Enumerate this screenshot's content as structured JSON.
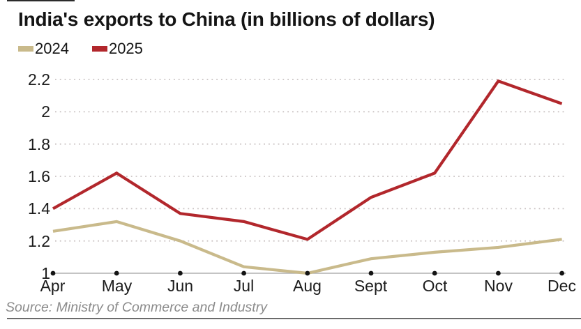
{
  "title": "India's exports to China (in billions of dollars)",
  "source": "Source: Ministry of Commerce and Industry",
  "chart_data": {
    "type": "line",
    "title": "India's exports to China (in billions of dollars)",
    "categories": [
      "Apr",
      "May",
      "Jun",
      "Jul",
      "Aug",
      "Sept",
      "Oct",
      "Nov",
      "Dec"
    ],
    "series": [
      {
        "name": "2024",
        "color": "#c9ba8b",
        "values": [
          1.26,
          1.32,
          1.2,
          1.04,
          1.0,
          1.09,
          1.13,
          1.16,
          1.21
        ]
      },
      {
        "name": "2025",
        "color": "#b2272c",
        "values": [
          1.4,
          1.62,
          1.37,
          1.32,
          1.21,
          1.47,
          1.62,
          2.19,
          2.05
        ]
      }
    ],
    "xlabel": "",
    "ylabel": "",
    "yticks": [
      "2.2",
      "2",
      "1.8",
      "1.6",
      "1.4",
      "1.2",
      "1"
    ],
    "ytick_values": [
      2.2,
      2.0,
      1.8,
      1.6,
      1.4,
      1.2,
      1.0
    ],
    "ylim": [
      1.0,
      2.2
    ],
    "grid": "horizontal-dotted",
    "legend_position": "top-left",
    "colors": {
      "gridline": "#c9c2c2",
      "baseline": "#b0b0b0",
      "tick_dot": "#141414"
    }
  }
}
